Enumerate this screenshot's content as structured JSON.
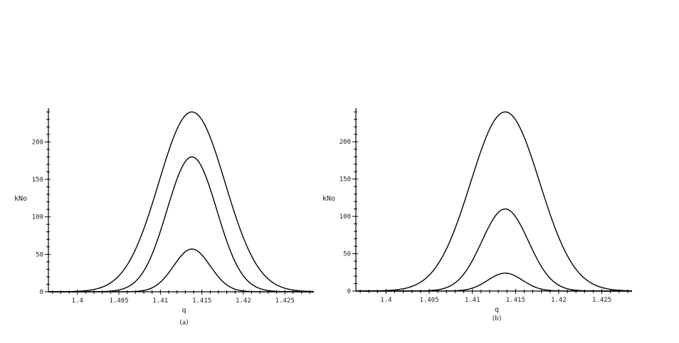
{
  "chart_data": [
    {
      "type": "line",
      "panel_label": "(a)",
      "xlabel": "q",
      "ylabel": "kNo",
      "xlim": [
        1.3965,
        1.4285
      ],
      "ylim": [
        0,
        245
      ],
      "x_ticks": [
        "1.4",
        "1.405",
        "1.41",
        "1.415",
        "1.42",
        "1.425"
      ],
      "y_ticks": [
        "0",
        "50",
        "100",
        "150",
        "200"
      ],
      "curve_center": 1.4138,
      "series": [
        {
          "peak": 240,
          "sigma": 0.004
        },
        {
          "peak": 180,
          "sigma": 0.003
        },
        {
          "peak": 57,
          "sigma": 0.0022
        }
      ]
    },
    {
      "type": "line",
      "panel_label": "(b)",
      "xlabel": "q",
      "ylabel": "kNo",
      "xlim": [
        1.3965,
        1.4285
      ],
      "ylim": [
        0,
        245
      ],
      "x_ticks": [
        "1.4",
        "1.405",
        "1.41",
        "1.415",
        "1.42",
        "1.425"
      ],
      "y_ticks": [
        "0",
        "50",
        "100",
        "150",
        "200"
      ],
      "curve_center": 1.4138,
      "series": [
        {
          "peak": 240,
          "sigma": 0.004
        },
        {
          "peak": 110,
          "sigma": 0.0027
        },
        {
          "peak": 24,
          "sigma": 0.002
        }
      ]
    }
  ]
}
